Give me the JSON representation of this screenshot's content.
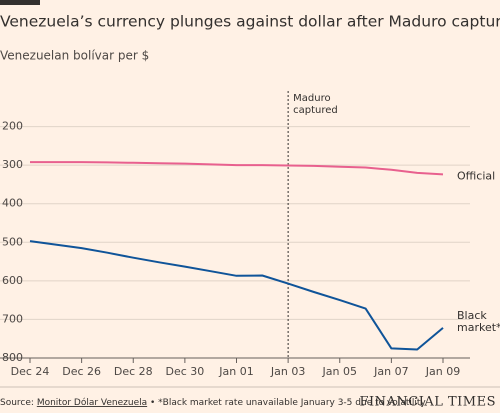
{
  "chart_data": {
    "type": "line",
    "title": "Venezuela’s currency plunges against dollar after Maduro capture",
    "subtitle": "Venezuelan bolívar per $",
    "categories": [
      "Dec 24",
      null,
      "Dec 26",
      null,
      "Dec 28",
      null,
      "Dec 30",
      null,
      "Jan 01",
      null,
      "Jan 03",
      null,
      "Jan 05",
      null,
      "Jan 07",
      null,
      "Jan 09"
    ],
    "series": [
      {
        "name": "Official",
        "color": "#e8608e",
        "values": [
          292,
          292,
          292,
          293,
          294,
          295,
          296,
          298,
          300,
          300,
          301,
          302,
          304,
          306,
          312,
          320,
          324
        ]
      },
      {
        "name": "Black market*",
        "color": "#0f5499",
        "values": [
          497,
          506,
          515,
          527,
          540,
          552,
          563,
          575,
          587,
          586,
          607,
          629,
          650,
          672,
          775,
          778,
          722
        ]
      }
    ],
    "ylim": [
      800,
      100
    ],
    "yticks": [
      200,
      300,
      400,
      500,
      600,
      700,
      800
    ],
    "grid": true,
    "annotation": {
      "text": [
        "Maduro",
        "captured"
      ],
      "x": "Jan 03"
    },
    "source": {
      "label": "Source:",
      "link": "Monitor Dólar Venezuela",
      "note": "• *Black market rate unavailable January 3-5 due to volatility"
    },
    "brand": "FINANCIAL TIMES"
  }
}
